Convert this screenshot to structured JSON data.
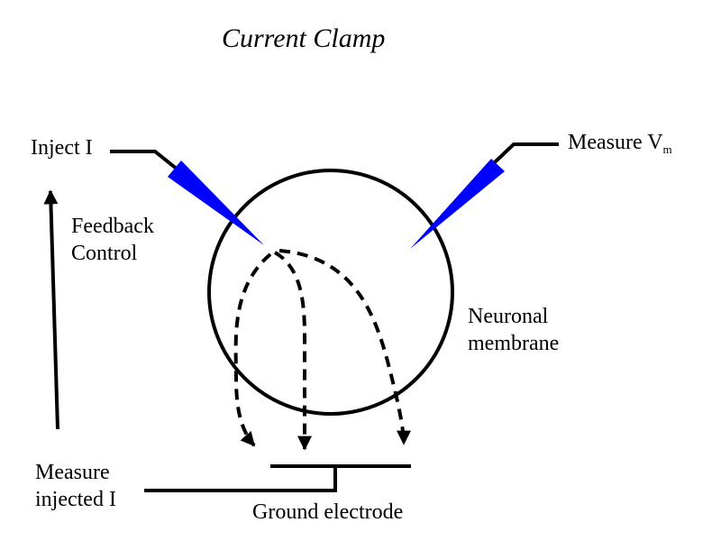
{
  "title": "Current Clamp",
  "labels": {
    "inject": "Inject I",
    "measure_v_prefix": "Measure V",
    "measure_v_sub": "m",
    "feedback_line1": "Feedback",
    "feedback_line2": "Control",
    "neuronal_line1": "Neuronal",
    "neuronal_line2": "membrane",
    "measure_injected_line1": "Measure",
    "measure_injected_line2": "injected I",
    "ground": "Ground electrode"
  },
  "colors": {
    "electrode": "#0000ff",
    "line": "#000000"
  }
}
